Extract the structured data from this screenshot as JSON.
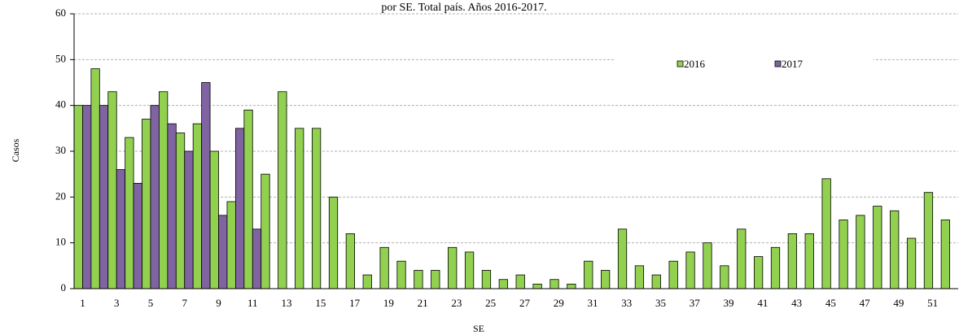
{
  "chart_data": {
    "type": "bar",
    "title": "por SE. Total país. Años 2016-2017.",
    "x_label": "SE",
    "y_label": "Casos",
    "categories": [
      1,
      null,
      3,
      null,
      5,
      null,
      7,
      null,
      9,
      null,
      11,
      null,
      13,
      null,
      15,
      null,
      17,
      null,
      19,
      null,
      21,
      null,
      23,
      null,
      25,
      null,
      27,
      null,
      29,
      null,
      31,
      null,
      33,
      null,
      35,
      null,
      37,
      null,
      39,
      null,
      41,
      null,
      43,
      null,
      45,
      null,
      47,
      null,
      49,
      null,
      51,
      null
    ],
    "series": [
      {
        "name": "2016",
        "color": "#92d050",
        "values": [
          40,
          48,
          43,
          33,
          37,
          43,
          34,
          36,
          30,
          19,
          39,
          25,
          43,
          35,
          35,
          20,
          12,
          3,
          9,
          6,
          4,
          4,
          9,
          8,
          4,
          2,
          3,
          1,
          2,
          1,
          6,
          4,
          13,
          5,
          3,
          6,
          8,
          10,
          5,
          13,
          7,
          9,
          12,
          12,
          24,
          15,
          16,
          18,
          17,
          11,
          21,
          15
        ]
      },
      {
        "name": "2017",
        "color": "#8064a2",
        "values": [
          40,
          40,
          26,
          23,
          40,
          36,
          30,
          45,
          16,
          35,
          13,
          null,
          null,
          null,
          null,
          null,
          null,
          null,
          null,
          null,
          null,
          null,
          null,
          null,
          null,
          null,
          null,
          null,
          null,
          null,
          null,
          null,
          null,
          null,
          null,
          null,
          null,
          null,
          null,
          null,
          null,
          null,
          null,
          null,
          null,
          null,
          null,
          null,
          null,
          null,
          null,
          null
        ]
      }
    ],
    "ylim": [
      0,
      60
    ],
    "yticks": [
      0,
      10,
      20,
      30,
      40,
      50,
      60
    ],
    "grid": true
  }
}
